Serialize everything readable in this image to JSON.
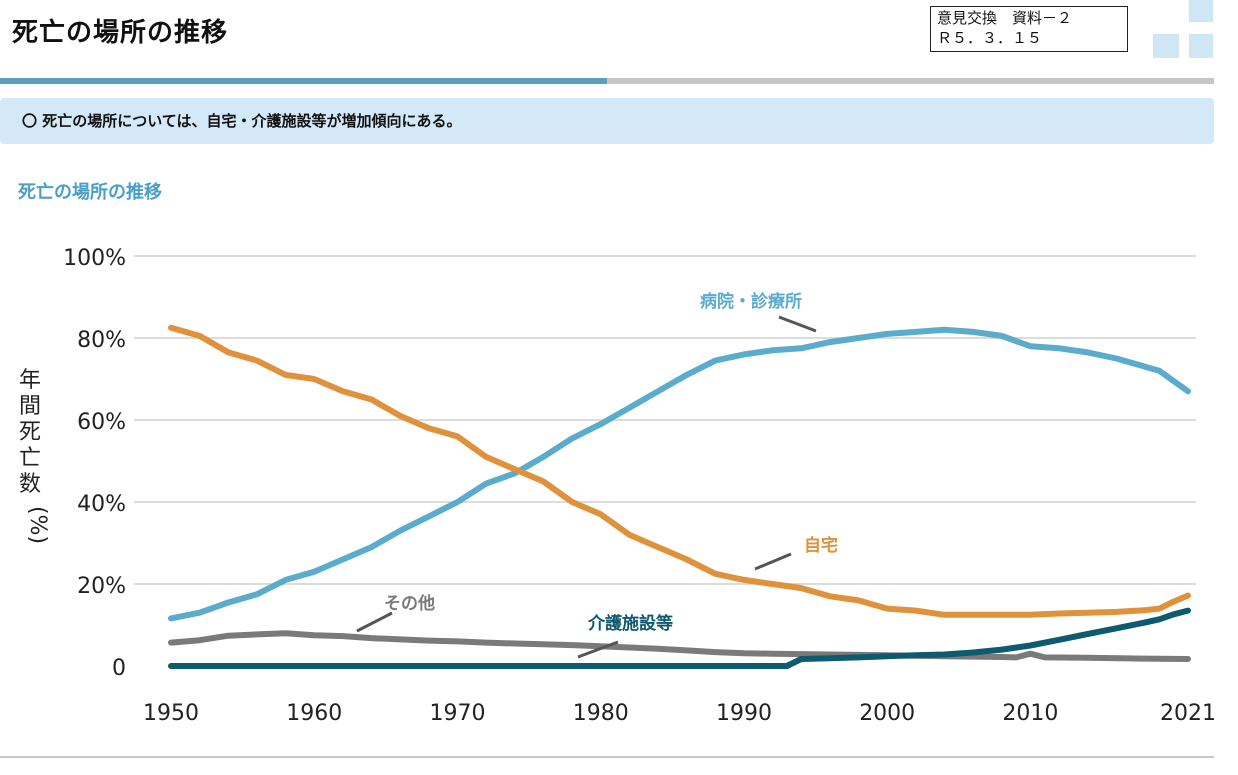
{
  "header": {
    "title": "死亡の場所の推移",
    "stamp_line1": "意見交換　資料－２",
    "stamp_line2": "Ｒ５．３．１５",
    "progress": 0.5
  },
  "summary": {
    "text": "〇 死亡の場所については、自宅・介護施設等が増加傾向にある。"
  },
  "colors": {
    "hospital": "#5baccc",
    "home": "#e0913c",
    "other": "#7a7a7a",
    "care": "#0e5a6e",
    "accent": "#4a9fc6"
  },
  "chart_data": {
    "type": "line",
    "title": "死亡の場所の推移",
    "ylabel": "年間死亡数 (%)",
    "xlabel": "",
    "xlim": [
      1950,
      2021
    ],
    "ylim": [
      0,
      100
    ],
    "x_ticks": [
      "1950",
      "1960",
      "1970",
      "1980",
      "1990",
      "2000",
      "2010",
      "2021"
    ],
    "y_ticks": [
      "0",
      "20%",
      "40%",
      "60%",
      "80%",
      "100%"
    ],
    "grid": true,
    "series": [
      {
        "name": "病院・診療所",
        "color_key": "hospital",
        "points": [
          [
            1950,
            11.6
          ],
          [
            1952,
            13
          ],
          [
            1954,
            15.5
          ],
          [
            1956,
            17.5
          ],
          [
            1958,
            21
          ],
          [
            1960,
            23
          ],
          [
            1962,
            26
          ],
          [
            1964,
            29
          ],
          [
            1966,
            33
          ],
          [
            1968,
            36.5
          ],
          [
            1970,
            40
          ],
          [
            1972,
            44.5
          ],
          [
            1974,
            47
          ],
          [
            1976,
            51
          ],
          [
            1978,
            55.5
          ],
          [
            1980,
            59
          ],
          [
            1982,
            63
          ],
          [
            1984,
            67
          ],
          [
            1986,
            71
          ],
          [
            1988,
            74.5
          ],
          [
            1990,
            76
          ],
          [
            1992,
            77
          ],
          [
            1994,
            77.5
          ],
          [
            1996,
            79
          ],
          [
            1998,
            80
          ],
          [
            2000,
            81
          ],
          [
            2002,
            81.5
          ],
          [
            2004,
            82
          ],
          [
            2006,
            81.5
          ],
          [
            2008,
            80.5
          ],
          [
            2010,
            78
          ],
          [
            2012,
            77.5
          ],
          [
            2014,
            76.5
          ],
          [
            2016,
            75
          ],
          [
            2018,
            73
          ],
          [
            2019,
            72
          ],
          [
            2020,
            69.5
          ],
          [
            2021,
            67
          ]
        ]
      },
      {
        "name": "自宅",
        "color_key": "home",
        "points": [
          [
            1950,
            82.5
          ],
          [
            1952,
            80.5
          ],
          [
            1954,
            76.5
          ],
          [
            1956,
            74.5
          ],
          [
            1958,
            71
          ],
          [
            1960,
            70
          ],
          [
            1962,
            67
          ],
          [
            1964,
            65
          ],
          [
            1966,
            61
          ],
          [
            1968,
            58
          ],
          [
            1970,
            56
          ],
          [
            1972,
            51
          ],
          [
            1974,
            48
          ],
          [
            1976,
            45
          ],
          [
            1978,
            40
          ],
          [
            1980,
            37
          ],
          [
            1982,
            32
          ],
          [
            1984,
            29
          ],
          [
            1986,
            26
          ],
          [
            1988,
            22.5
          ],
          [
            1990,
            21
          ],
          [
            1992,
            20
          ],
          [
            1994,
            19
          ],
          [
            1996,
            17
          ],
          [
            1998,
            16
          ],
          [
            2000,
            14
          ],
          [
            2002,
            13.5
          ],
          [
            2004,
            12.5
          ],
          [
            2006,
            12.5
          ],
          [
            2008,
            12.5
          ],
          [
            2010,
            12.5
          ],
          [
            2012,
            12.8
          ],
          [
            2014,
            13
          ],
          [
            2016,
            13.2
          ],
          [
            2018,
            13.6
          ],
          [
            2019,
            14
          ],
          [
            2020,
            15.7
          ],
          [
            2021,
            17.2
          ]
        ]
      },
      {
        "name": "その他",
        "color_key": "other",
        "points": [
          [
            1950,
            5.7
          ],
          [
            1952,
            6.3
          ],
          [
            1954,
            7.4
          ],
          [
            1956,
            7.7
          ],
          [
            1958,
            8
          ],
          [
            1960,
            7.5
          ],
          [
            1962,
            7.3
          ],
          [
            1964,
            6.8
          ],
          [
            1966,
            6.5
          ],
          [
            1968,
            6.2
          ],
          [
            1970,
            6
          ],
          [
            1972,
            5.7
          ],
          [
            1974,
            5.5
          ],
          [
            1976,
            5.3
          ],
          [
            1978,
            5.1
          ],
          [
            1980,
            4.8
          ],
          [
            1982,
            4.5
          ],
          [
            1984,
            4.2
          ],
          [
            1986,
            3.8
          ],
          [
            1988,
            3.4
          ],
          [
            1990,
            3.1
          ],
          [
            1992,
            3
          ],
          [
            1994,
            2.9
          ],
          [
            1996,
            2.8
          ],
          [
            1998,
            2.7
          ],
          [
            2000,
            2.6
          ],
          [
            2002,
            2.5
          ],
          [
            2004,
            2.4
          ],
          [
            2006,
            2.3
          ],
          [
            2008,
            2.2
          ],
          [
            2009,
            2.1
          ],
          [
            2010,
            3
          ],
          [
            2011,
            2.1
          ],
          [
            2014,
            2
          ],
          [
            2018,
            1.8
          ],
          [
            2021,
            1.7
          ]
        ]
      },
      {
        "name": "介護施設等",
        "color_key": "care",
        "points": [
          [
            1950,
            0
          ],
          [
            1993,
            0
          ],
          [
            1994,
            1.7
          ],
          [
            1996,
            1.9
          ],
          [
            1998,
            2.1
          ],
          [
            2000,
            2.4
          ],
          [
            2002,
            2.6
          ],
          [
            2004,
            2.8
          ],
          [
            2006,
            3.3
          ],
          [
            2008,
            4
          ],
          [
            2010,
            5
          ],
          [
            2012,
            6.4
          ],
          [
            2014,
            7.8
          ],
          [
            2016,
            9.2
          ],
          [
            2018,
            10.6
          ],
          [
            2019,
            11.4
          ],
          [
            2020,
            12.6
          ],
          [
            2021,
            13.5
          ]
        ]
      }
    ],
    "annotations": [
      {
        "text": "病院・診療所",
        "series": "病院・診療所",
        "color_key": "hospital"
      },
      {
        "text": "自宅",
        "series": "自宅",
        "color_key": "home"
      },
      {
        "text": "その他",
        "series": "その他",
        "color_key": "other"
      },
      {
        "text": "介護施設等",
        "series": "介護施設等",
        "color_key": "care"
      }
    ]
  }
}
